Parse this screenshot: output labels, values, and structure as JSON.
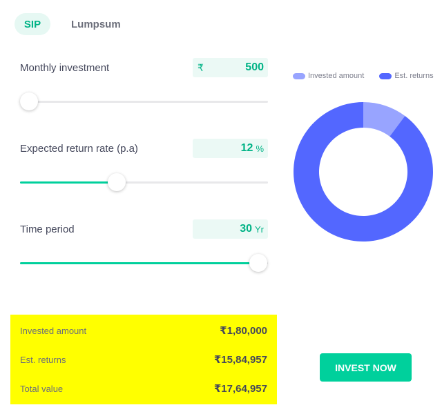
{
  "tabs": [
    {
      "label": "SIP",
      "active": true
    },
    {
      "label": "Lumpsum",
      "active": false
    }
  ],
  "inputs": {
    "monthly": {
      "label": "Monthly investment",
      "prefix": "₹",
      "value": "500",
      "suffix": "",
      "slider_fraction": 0.0
    },
    "rate": {
      "label": "Expected return rate (p.a)",
      "prefix": "",
      "value": "12",
      "suffix": "%",
      "slider_fraction": 0.39
    },
    "time": {
      "label": "Time period",
      "prefix": "",
      "value": "30",
      "suffix": "Yr",
      "slider_fraction": 0.96
    }
  },
  "summary": {
    "invested_label": "Invested amount",
    "invested_value": "₹1,80,000",
    "returns_label": "Est. returns",
    "returns_value": "₹15,84,957",
    "total_label": "Total value",
    "total_value": "₹17,64,957"
  },
  "colors": {
    "accent": "#00d09c",
    "invested": "#98a4ff",
    "returns": "#5367ff",
    "summary_highlight": "#ffff00"
  },
  "chart_data": {
    "type": "pie",
    "style": "donut",
    "categories": [
      "Invested amount",
      "Est. returns"
    ],
    "values": [
      180000,
      1584957
    ],
    "legend_position": "top"
  },
  "cta": {
    "label": "INVEST NOW"
  }
}
